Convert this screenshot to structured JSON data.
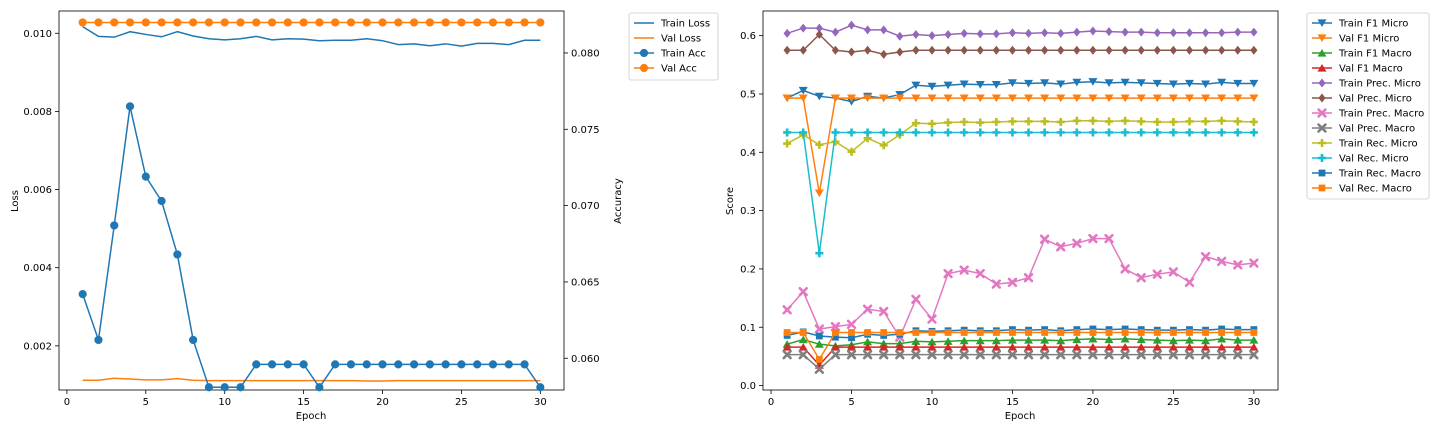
{
  "chart_data": [
    {
      "type": "line",
      "xlabel": "Epoch",
      "ylabel": "Loss",
      "y2label": "Accuracy",
      "xlim": [
        -0.5,
        31.5
      ],
      "ylim": [
        0.00087,
        0.01057
      ],
      "y2lim": [
        0.05792,
        0.08275
      ],
      "xticks": [
        0,
        5,
        10,
        15,
        20,
        25,
        30
      ],
      "yticks": [
        0.002,
        0.004,
        0.006,
        0.008,
        0.01
      ],
      "yticks_labels": [
        "0.002",
        "0.004",
        "0.006",
        "0.008",
        "0.010"
      ],
      "y2ticks": [
        0.06,
        0.065,
        0.07,
        0.075,
        0.08
      ],
      "y2ticks_labels": [
        "0.060",
        "0.065",
        "0.070",
        "0.075",
        "0.080"
      ],
      "x": [
        1,
        2,
        3,
        4,
        5,
        6,
        7,
        8,
        9,
        10,
        11,
        12,
        13,
        14,
        15,
        16,
        17,
        18,
        19,
        20,
        21,
        22,
        23,
        24,
        25,
        26,
        27,
        28,
        29,
        30
      ],
      "legend_position": "outside-right",
      "series": [
        {
          "name": "Train Loss",
          "axis": "left",
          "color": "#1f77b4",
          "marker": "none",
          "values": [
            0.01017,
            0.00992,
            0.0099,
            0.01004,
            0.00997,
            0.00991,
            0.01004,
            0.00993,
            0.00986,
            0.00983,
            0.00986,
            0.00992,
            0.00983,
            0.00986,
            0.00985,
            0.00981,
            0.00982,
            0.00982,
            0.00986,
            0.00981,
            0.00971,
            0.00973,
            0.00968,
            0.00973,
            0.00967,
            0.00974,
            0.00974,
            0.00971,
            0.00982,
            0.00982
          ]
        },
        {
          "name": "Val Loss",
          "axis": "left",
          "color": "#ff7f0e",
          "marker": "none",
          "values": [
            0.00112,
            0.00112,
            0.00117,
            0.00115,
            0.00113,
            0.00113,
            0.00116,
            0.00112,
            0.00111,
            0.00111,
            0.00111,
            0.00111,
            0.00111,
            0.00111,
            0.00111,
            0.00111,
            0.00111,
            0.00111,
            0.0011,
            0.0011,
            0.00111,
            0.00111,
            0.00111,
            0.00111,
            0.00111,
            0.00111,
            0.00111,
            0.00111,
            0.00111,
            0.00111
          ]
        },
        {
          "name": "Train Acc",
          "axis": "right",
          "color": "#1f77b4",
          "marker": "circle",
          "values": [
            0.0642,
            0.0612,
            0.0687,
            0.0765,
            0.0719,
            0.0703,
            0.0668,
            0.0612,
            0.0581,
            0.0581,
            0.0581,
            0.0596,
            0.0596,
            0.0596,
            0.0596,
            0.0581,
            0.0596,
            0.0596,
            0.0596,
            0.0596,
            0.0596,
            0.0596,
            0.0596,
            0.0596,
            0.0596,
            0.0596,
            0.0596,
            0.0596,
            0.0596,
            0.0581
          ]
        },
        {
          "name": "Val Acc",
          "axis": "right",
          "color": "#ff7f0e",
          "marker": "circle",
          "values": [
            0.082,
            0.082,
            0.082,
            0.082,
            0.082,
            0.082,
            0.082,
            0.082,
            0.082,
            0.082,
            0.082,
            0.082,
            0.082,
            0.082,
            0.082,
            0.082,
            0.082,
            0.082,
            0.082,
            0.082,
            0.082,
            0.082,
            0.082,
            0.082,
            0.082,
            0.082,
            0.082,
            0.082,
            0.082,
            0.082
          ]
        }
      ]
    },
    {
      "type": "line",
      "xlabel": "Epoch",
      "ylabel": "Score",
      "xlim": [
        -0.5,
        31.5
      ],
      "ylim": [
        -0.0076,
        0.6423
      ],
      "xticks": [
        0,
        5,
        10,
        15,
        20,
        25,
        30
      ],
      "yticks": [
        0.0,
        0.1,
        0.2,
        0.3,
        0.4,
        0.5,
        0.6
      ],
      "yticks_labels": [
        "0.0",
        "0.1",
        "0.2",
        "0.3",
        "0.4",
        "0.5",
        "0.6"
      ],
      "x": [
        1,
        2,
        3,
        4,
        5,
        6,
        7,
        8,
        9,
        10,
        11,
        12,
        13,
        14,
        15,
        16,
        17,
        18,
        19,
        20,
        21,
        22,
        23,
        24,
        25,
        26,
        27,
        28,
        29,
        30
      ],
      "legend_position": "outside-right",
      "series": [
        {
          "name": "Train F1 Micro",
          "color": "#1f77b4",
          "marker": "tri_down",
          "values": [
            0.493,
            0.506,
            0.496,
            0.493,
            0.487,
            0.496,
            0.493,
            0.499,
            0.515,
            0.513,
            0.515,
            0.517,
            0.516,
            0.516,
            0.519,
            0.518,
            0.519,
            0.517,
            0.52,
            0.521,
            0.519,
            0.52,
            0.519,
            0.518,
            0.517,
            0.518,
            0.517,
            0.52,
            0.518,
            0.518
          ]
        },
        {
          "name": "Val F1 Micro",
          "color": "#ff7f0e",
          "marker": "tri_down",
          "values": [
            0.493,
            0.493,
            0.33,
            0.493,
            0.493,
            0.493,
            0.493,
            0.493,
            0.493,
            0.493,
            0.493,
            0.493,
            0.493,
            0.493,
            0.493,
            0.493,
            0.493,
            0.493,
            0.493,
            0.493,
            0.493,
            0.493,
            0.493,
            0.493,
            0.493,
            0.493,
            0.493,
            0.493,
            0.493,
            0.493
          ]
        },
        {
          "name": "Train F1 Macro",
          "color": "#2ca02c",
          "marker": "tri_up",
          "values": [
            0.071,
            0.079,
            0.071,
            0.068,
            0.07,
            0.075,
            0.072,
            0.072,
            0.076,
            0.075,
            0.076,
            0.077,
            0.077,
            0.077,
            0.078,
            0.078,
            0.078,
            0.077,
            0.079,
            0.08,
            0.079,
            0.08,
            0.079,
            0.078,
            0.077,
            0.078,
            0.077,
            0.08,
            0.078,
            0.078
          ]
        },
        {
          "name": "Val F1 Macro",
          "color": "#d62728",
          "marker": "tri_up",
          "values": [
            0.066,
            0.066,
            0.035,
            0.066,
            0.066,
            0.066,
            0.066,
            0.066,
            0.066,
            0.066,
            0.066,
            0.066,
            0.066,
            0.066,
            0.066,
            0.066,
            0.066,
            0.066,
            0.066,
            0.066,
            0.066,
            0.066,
            0.066,
            0.066,
            0.066,
            0.066,
            0.066,
            0.066,
            0.066,
            0.066
          ]
        },
        {
          "name": "Train Prec. Micro",
          "color": "#9467bd",
          "marker": "diamond",
          "values": [
            0.604,
            0.613,
            0.613,
            0.606,
            0.618,
            0.61,
            0.61,
            0.599,
            0.602,
            0.6,
            0.602,
            0.604,
            0.603,
            0.603,
            0.605,
            0.604,
            0.605,
            0.604,
            0.606,
            0.608,
            0.607,
            0.606,
            0.606,
            0.605,
            0.605,
            0.605,
            0.605,
            0.605,
            0.606,
            0.606
          ]
        },
        {
          "name": "Val Prec. Micro",
          "color": "#8c564b",
          "marker": "diamond",
          "values": [
            0.575,
            0.575,
            0.602,
            0.575,
            0.572,
            0.575,
            0.568,
            0.572,
            0.575,
            0.575,
            0.575,
            0.575,
            0.575,
            0.575,
            0.575,
            0.575,
            0.575,
            0.575,
            0.575,
            0.575,
            0.575,
            0.575,
            0.575,
            0.575,
            0.575,
            0.575,
            0.575,
            0.575,
            0.575,
            0.575
          ]
        },
        {
          "name": "Train Prec. Macro",
          "color": "#e377c2",
          "marker": "x",
          "values": [
            0.13,
            0.161,
            0.097,
            0.101,
            0.105,
            0.131,
            0.127,
            0.083,
            0.148,
            0.114,
            0.192,
            0.198,
            0.192,
            0.174,
            0.177,
            0.185,
            0.251,
            0.238,
            0.244,
            0.252,
            0.252,
            0.2,
            0.185,
            0.191,
            0.195,
            0.177,
            0.221,
            0.213,
            0.207,
            0.21
          ]
        },
        {
          "name": "Val Prec. Macro",
          "color": "#7f7f7f",
          "marker": "x",
          "values": [
            0.053,
            0.053,
            0.028,
            0.053,
            0.053,
            0.053,
            0.053,
            0.053,
            0.053,
            0.053,
            0.053,
            0.053,
            0.053,
            0.053,
            0.053,
            0.053,
            0.053,
            0.053,
            0.053,
            0.053,
            0.053,
            0.053,
            0.053,
            0.053,
            0.053,
            0.053,
            0.053,
            0.053,
            0.053,
            0.053
          ]
        },
        {
          "name": "Train Rec. Micro",
          "color": "#bcbd22",
          "marker": "plus",
          "values": [
            0.415,
            0.43,
            0.413,
            0.418,
            0.401,
            0.424,
            0.412,
            0.43,
            0.45,
            0.449,
            0.451,
            0.452,
            0.451,
            0.452,
            0.453,
            0.453,
            0.453,
            0.452,
            0.454,
            0.454,
            0.453,
            0.454,
            0.453,
            0.452,
            0.452,
            0.453,
            0.453,
            0.454,
            0.453,
            0.452
          ]
        },
        {
          "name": "Val Rec. Micro",
          "color": "#17becf",
          "marker": "plus",
          "values": [
            0.434,
            0.434,
            0.227,
            0.434,
            0.434,
            0.434,
            0.434,
            0.434,
            0.434,
            0.434,
            0.434,
            0.434,
            0.434,
            0.434,
            0.434,
            0.434,
            0.434,
            0.434,
            0.434,
            0.434,
            0.434,
            0.434,
            0.434,
            0.434,
            0.434,
            0.434,
            0.434,
            0.434,
            0.434,
            0.434
          ]
        },
        {
          "name": "Train Rec. Macro",
          "color": "#1f77b4",
          "marker": "square",
          "values": [
            0.086,
            0.092,
            0.085,
            0.083,
            0.082,
            0.088,
            0.086,
            0.088,
            0.094,
            0.093,
            0.094,
            0.095,
            0.094,
            0.094,
            0.096,
            0.095,
            0.096,
            0.094,
            0.096,
            0.097,
            0.096,
            0.097,
            0.096,
            0.095,
            0.095,
            0.096,
            0.095,
            0.097,
            0.096,
            0.096
          ]
        },
        {
          "name": "Val Rec. Macro",
          "color": "#ff7f0e",
          "marker": "square",
          "values": [
            0.091,
            0.091,
            0.045,
            0.091,
            0.091,
            0.091,
            0.091,
            0.091,
            0.091,
            0.091,
            0.091,
            0.091,
            0.091,
            0.091,
            0.091,
            0.091,
            0.091,
            0.091,
            0.091,
            0.091,
            0.091,
            0.091,
            0.091,
            0.091,
            0.091,
            0.091,
            0.091,
            0.091,
            0.091,
            0.091
          ]
        }
      ]
    }
  ]
}
